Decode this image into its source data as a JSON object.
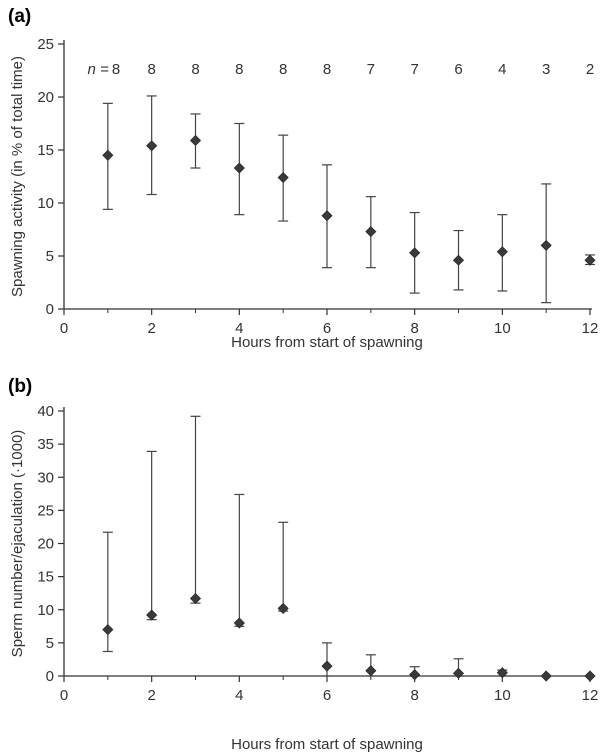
{
  "chart_data": [
    {
      "panel": "(a)",
      "type": "scatter",
      "xlabel": "Hours from start of spawning",
      "ylabel": "Spawning activity (in % of total time)",
      "xlim": [
        0,
        12
      ],
      "ylim": [
        0,
        25
      ],
      "xticks": [
        0,
        2,
        4,
        6,
        8,
        10,
        12
      ],
      "yticks": [
        0,
        5,
        10,
        15,
        20,
        25
      ],
      "grid": false,
      "n_prefix": "n =",
      "n_values": [
        "8",
        "8",
        "8",
        "8",
        "8",
        "8",
        "7",
        "7",
        "6",
        "4",
        "3",
        "2"
      ],
      "x": [
        1,
        2,
        3,
        4,
        5,
        6,
        7,
        8,
        9,
        10,
        11,
        12
      ],
      "y": [
        14.5,
        15.4,
        15.9,
        13.3,
        12.4,
        8.8,
        7.3,
        5.3,
        4.6,
        5.4,
        6.0,
        4.6
      ],
      "err_upper": [
        19.4,
        20.1,
        18.4,
        17.5,
        16.4,
        13.6,
        10.6,
        9.1,
        7.4,
        8.9,
        11.8,
        5.1
      ],
      "err_lower": [
        9.4,
        10.8,
        13.3,
        8.9,
        8.3,
        3.9,
        3.9,
        1.5,
        1.8,
        1.7,
        0.6,
        4.2
      ]
    },
    {
      "panel": "(b)",
      "type": "scatter",
      "xlabel": "Hours from start of spawning",
      "ylabel": "Sperm number/ejaculation (·1000)",
      "xlim": [
        0,
        12
      ],
      "ylim": [
        0,
        40
      ],
      "xticks": [
        0,
        2,
        4,
        6,
        8,
        10,
        12
      ],
      "yticks": [
        0,
        5,
        10,
        15,
        20,
        25,
        30,
        35,
        40
      ],
      "grid": false,
      "x": [
        1,
        2,
        3,
        4,
        5,
        6,
        7,
        8,
        9,
        10,
        11,
        12
      ],
      "y": [
        7.0,
        9.2,
        11.7,
        8.0,
        10.2,
        1.5,
        0.8,
        0.2,
        0.4,
        0.5,
        0.0,
        0.0
      ],
      "err_upper": [
        21.7,
        33.9,
        39.2,
        27.4,
        23.2,
        5.0,
        3.2,
        1.4,
        2.6,
        0.9,
        0.0,
        0.0
      ],
      "err_lower": [
        3.7,
        8.5,
        11.0,
        7.5,
        9.8,
        0.0,
        0.0,
        0.0,
        0.0,
        0.0,
        0.0,
        0.0
      ]
    }
  ]
}
